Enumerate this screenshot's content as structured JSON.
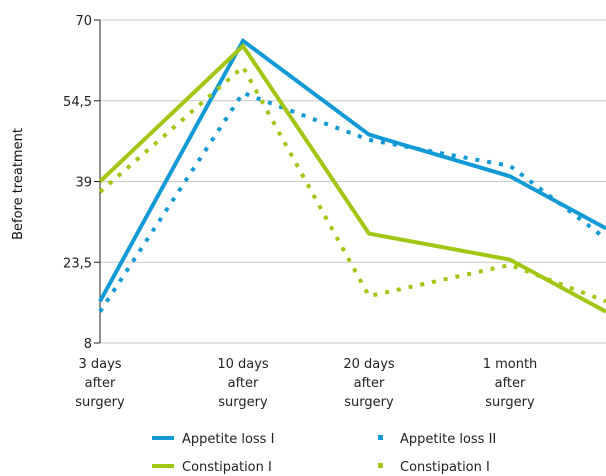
{
  "chart_data": {
    "type": "line",
    "title": "",
    "xlabel": "",
    "ylabel": "Before treatment",
    "ylim": [
      8,
      70
    ],
    "yticks": [
      "70",
      "54,5",
      "39",
      "23,5",
      "8"
    ],
    "ytick_values": [
      70,
      54.5,
      39,
      23.5,
      8
    ],
    "categories": [
      [
        "3 days",
        "after",
        "surgery"
      ],
      [
        "10 days",
        "after",
        "surgery"
      ],
      [
        "20 days",
        "after",
        "surgery"
      ],
      [
        "1 month",
        "after",
        "surgery"
      ],
      [
        ""
      ]
    ],
    "grid": "horizontal",
    "legend_position": "bottom",
    "series": [
      {
        "name": "Appetite loss I",
        "values": [
          16,
          66,
          48,
          40,
          30
        ],
        "color": "#139ad6",
        "style": "solid"
      },
      {
        "name": "Appetite loss II",
        "values": [
          14,
          56,
          47,
          42,
          28
        ],
        "color": "#139ad6",
        "style": "dotted"
      },
      {
        "name": "Constipation I",
        "values": [
          39,
          65,
          29,
          24,
          14
        ],
        "color": "#a2c614",
        "style": "solid"
      },
      {
        "name": "Constipation I",
        "values": [
          37,
          61,
          17,
          23,
          16
        ],
        "color": "#a2c614",
        "style": "dotted"
      }
    ]
  }
}
